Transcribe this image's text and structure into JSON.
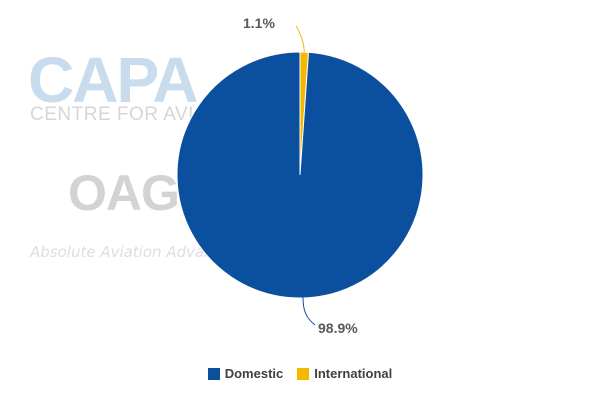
{
  "watermark": {
    "capa": "CAPA",
    "capa_sub": "CENTRE FOR AVIATION",
    "oag": "OAG",
    "oag_sub": "Absolute Aviation Advantage"
  },
  "chart_data": {
    "type": "pie",
    "title": "",
    "legend_position": "bottom",
    "slices": [
      {
        "name": "Domestic",
        "value": 98.9,
        "label": "98.9%",
        "color": "#0b4f9f"
      },
      {
        "name": "International",
        "value": 1.1,
        "label": "1.1%",
        "color": "#f5b800"
      }
    ]
  }
}
